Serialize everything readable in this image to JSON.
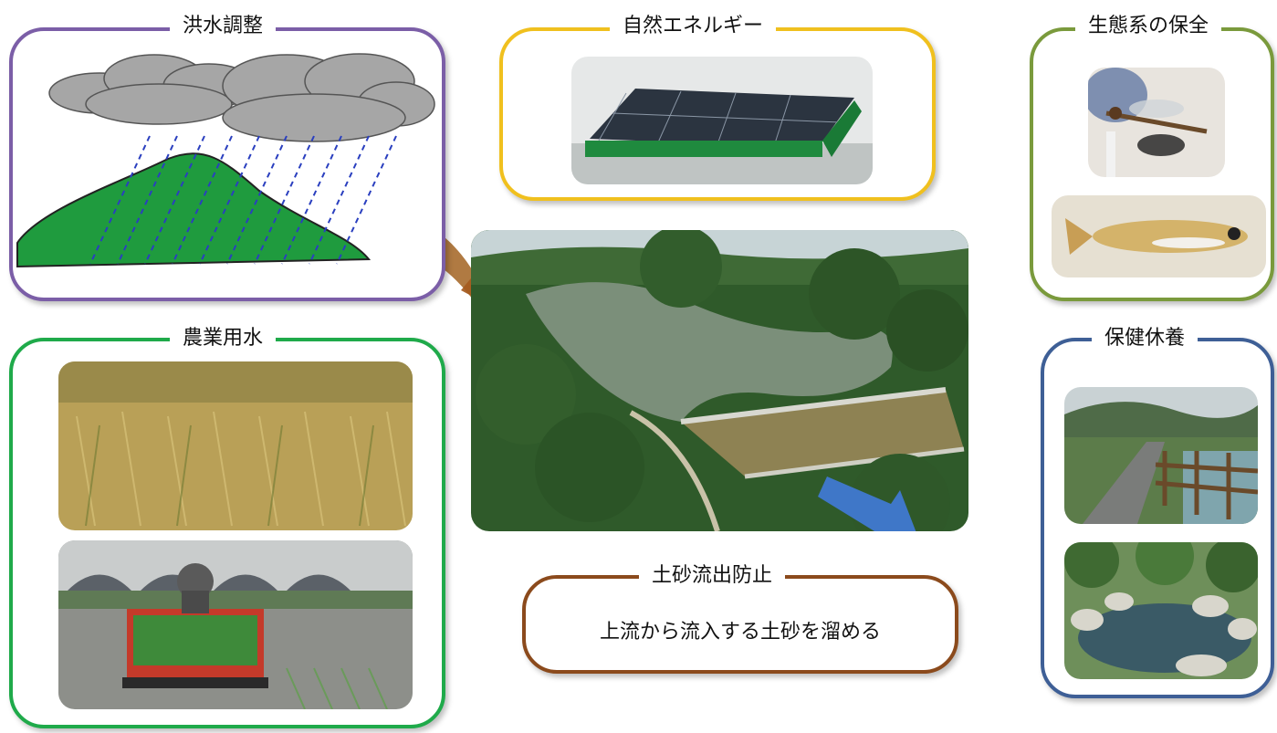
{
  "panels": {
    "flood": {
      "label": "洪水調整",
      "color": "#7b5ea7"
    },
    "energy": {
      "label": "自然エネルギー",
      "color": "#f0c01e"
    },
    "ecosystem": {
      "label": "生態系の保全",
      "color": "#7a9a3c"
    },
    "agriculture": {
      "label": "農業用水",
      "color": "#1faa4a"
    },
    "recreation": {
      "label": "保健休養",
      "color": "#3e5f96"
    },
    "sediment": {
      "label": "土砂流出防止",
      "text": "上流から流入する土砂を溜める",
      "color": "#8b4a1c"
    }
  }
}
